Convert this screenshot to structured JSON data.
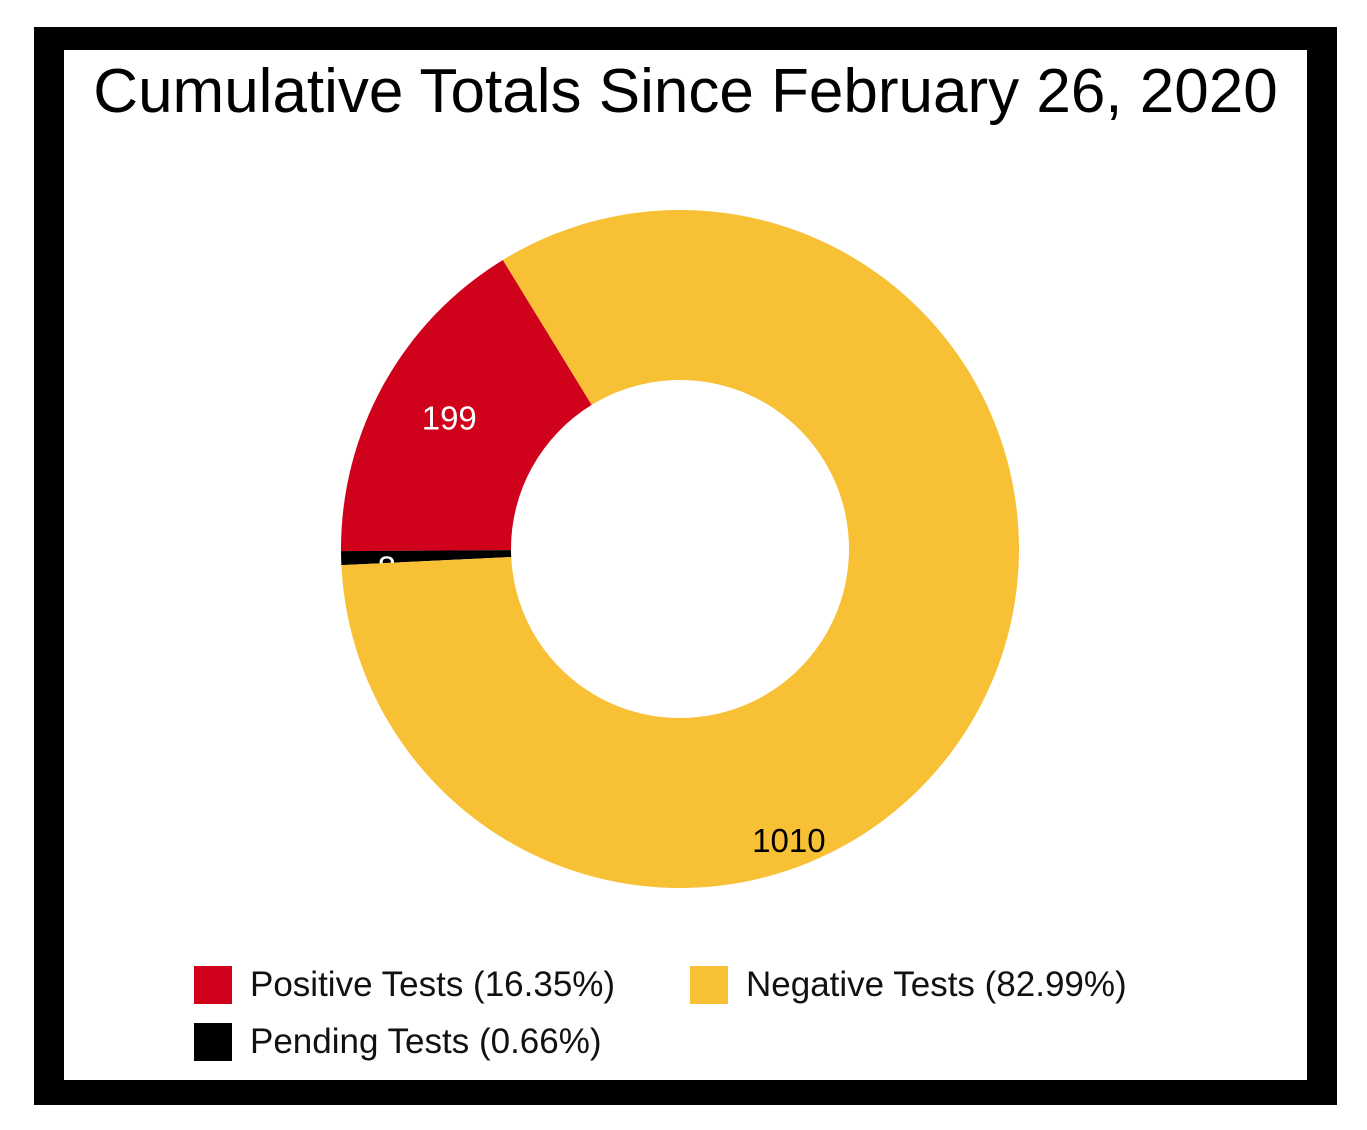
{
  "chart_data": {
    "type": "pie",
    "title": "Cumulative Totals Since February 26, 2020",
    "donut": true,
    "slices": [
      {
        "label": "Positive Tests",
        "value": 199,
        "percent_label": "16.35%",
        "color": "#d0021b",
        "value_label_color": "#ffffff"
      },
      {
        "label": "Pending Tests",
        "value": 8,
        "percent_label": "0.66%",
        "color": "#000000",
        "value_label_color": "#ffffff"
      },
      {
        "label": "Negative Tests",
        "value": 1010,
        "percent_label": "82.99%",
        "color": "#f8c135",
        "value_label_color": "#000000"
      }
    ],
    "legend": {
      "placement": "bottom",
      "items": [
        {
          "text": "Positive Tests (16.35%)",
          "color": "#d0021b"
        },
        {
          "text": "Negative Tests (82.99%)",
          "color": "#f8c135"
        },
        {
          "text": "Pending Tests (0.66%)",
          "color": "#000000"
        }
      ]
    }
  },
  "colors": {
    "frame": "#000000",
    "background": "#ffffff"
  }
}
